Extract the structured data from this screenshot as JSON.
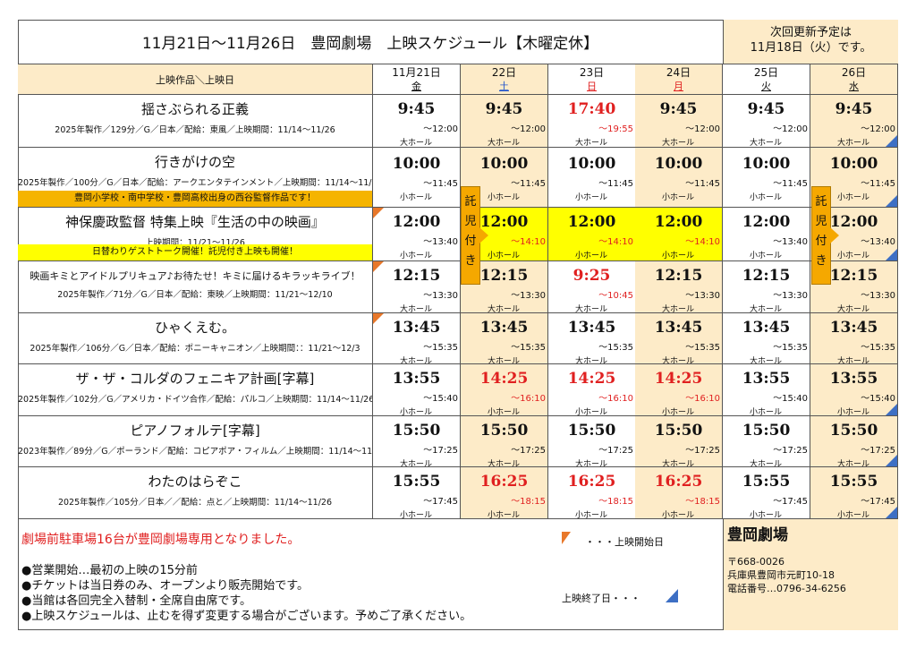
{
  "title": "11月21日～11月26日　豊岡劇場　上映スケジュール【木曜定休】",
  "update_notice": [
    "次回更新予定は",
    "11月18日（火）です。"
  ],
  "header_label": "上映作品＼上映日",
  "days": [
    {
      "date": "11月21日",
      "weekday": "金",
      "color": "#111111",
      "bg": "#ffffff"
    },
    {
      "date": "22日",
      "weekday": "土",
      "color": "#2255cc",
      "bg": "#fdebc8"
    },
    {
      "date": "23日",
      "weekday": "日",
      "color": "#e02020",
      "bg": "#ffffff"
    },
    {
      "date": "24日",
      "weekday": "月",
      "color": "#e02020",
      "bg": "#fdebc8"
    },
    {
      "date": "25日",
      "weekday": "火",
      "color": "#111111",
      "bg": "#ffffff"
    },
    {
      "date": "26日",
      "weekday": "水",
      "color": "#111111",
      "bg": "#fdebc8"
    }
  ],
  "movies": [
    {
      "title": "揺さぶられる正義",
      "info": "2025年製作／129分／G／日本／配給：東風／上映期間：11/14～11/26",
      "start": false,
      "end": true,
      "cells": [
        [
          "9:45",
          "～12:00",
          "大ホール",
          0,
          0
        ],
        [
          "9:45",
          "～12:00",
          "大ホール",
          0,
          0
        ],
        [
          "17:40",
          "～19:55",
          "大ホール",
          1,
          1
        ],
        [
          "9:45",
          "～12:00",
          "大ホール",
          0,
          0
        ],
        [
          "9:45",
          "～12:00",
          "大ホール",
          0,
          0
        ],
        [
          "9:45",
          "～12:00",
          "大ホール",
          0,
          0
        ]
      ]
    },
    {
      "title": "行きがけの空",
      "info": "2025年製作／100分／G／日本／配給：アークエンタテインメント／上映期間：11/14～11/26",
      "note": "豊岡小学校・南中学校・豊岡高校出身の西谷監督作品です！",
      "note_bg": "#f5b400",
      "start": false,
      "end": true,
      "cells": [
        [
          "10:00",
          "～11:45",
          "小ホール",
          0,
          0
        ],
        [
          "10:00",
          "～11:45",
          "小ホール",
          0,
          0
        ],
        [
          "10:00",
          "～11:45",
          "小ホール",
          0,
          0
        ],
        [
          "10:00",
          "～11:45",
          "小ホール",
          0,
          0
        ],
        [
          "10:00",
          "～11:45",
          "小ホール",
          0,
          0
        ],
        [
          "10:00",
          "～11:45",
          "小ホール",
          0,
          0
        ]
      ]
    },
    {
      "title": "神保慶政監督  特集上映『生活の中の映画』",
      "info": "上映期間：11/21～11/26",
      "note": "日替わりゲストトーク開催！託児付き上映も開催！",
      "note_bg": "#ffff00",
      "start": true,
      "end": true,
      "highlight": [
        1,
        2,
        3
      ],
      "cells": [
        [
          "12:00",
          "～13:40",
          "小ホール",
          0,
          0
        ],
        [
          "12:00",
          "～14:10",
          "小ホール",
          0,
          1
        ],
        [
          "12:00",
          "～14:10",
          "小ホール",
          0,
          1
        ],
        [
          "12:00",
          "～14:10",
          "小ホール",
          0,
          1
        ],
        [
          "12:00",
          "～13:40",
          "小ホール",
          0,
          0
        ],
        [
          "12:00",
          "～13:40",
          "小ホール",
          0,
          0
        ]
      ]
    },
    {
      "title": "映画キミとアイドルプリキュア♪お待たせ！キミに届けるキラッキライブ！",
      "info": "2025年製作／71分／G／日本／配給：東映／上映期間：11/21～12/10",
      "start": true,
      "end": false,
      "small_title": true,
      "cells": [
        [
          "12:15",
          "～13:30",
          "大ホール",
          0,
          0
        ],
        [
          "12:15",
          "～13:30",
          "大ホール",
          0,
          0
        ],
        [
          "9:25",
          "～10:45",
          "大ホール",
          1,
          1
        ],
        [
          "12:15",
          "～13:30",
          "大ホール",
          0,
          0
        ],
        [
          "12:15",
          "～13:30",
          "大ホール",
          0,
          0
        ],
        [
          "12:15",
          "～13:30",
          "大ホール",
          0,
          0
        ]
      ]
    },
    {
      "title": "ひゃくえむ。",
      "info": "2025年製作／106分／G／日本／配給：ポニーキャニオン／上映期間：：11/21～12/3",
      "start": true,
      "end": false,
      "cells": [
        [
          "13:45",
          "～15:35",
          "大ホール",
          0,
          0
        ],
        [
          "13:45",
          "～15:35",
          "大ホール",
          0,
          0
        ],
        [
          "13:45",
          "～15:35",
          "大ホール",
          0,
          0
        ],
        [
          "13:45",
          "～15:35",
          "大ホール",
          0,
          0
        ],
        [
          "13:45",
          "～15:35",
          "大ホール",
          0,
          0
        ],
        [
          "13:45",
          "～15:35",
          "大ホール",
          0,
          0
        ]
      ]
    },
    {
      "title": "ザ・ザ・コルダのフェニキア計画[字幕]",
      "info": "2025年製作／102分／G／アメリカ・ドイツ合作／配給：パルコ／上映期間：11/14～11/26",
      "start": false,
      "end": true,
      "cells": [
        [
          "13:55",
          "～15:40",
          "小ホール",
          0,
          0
        ],
        [
          "14:25",
          "～16:10",
          "小ホール",
          1,
          1
        ],
        [
          "14:25",
          "～16:10",
          "小ホール",
          1,
          1
        ],
        [
          "14:25",
          "～16:10",
          "小ホール",
          1,
          1
        ],
        [
          "13:55",
          "～15:40",
          "小ホール",
          0,
          0
        ],
        [
          "13:55",
          "～15:40",
          "小ホール",
          0,
          0
        ]
      ]
    },
    {
      "title": "ピアノフォルテ[字幕]",
      "info": "2023年製作／89分／G／ポーランド／配給：コピアポア・フィルム／上映期間：11/14～11/26",
      "start": false,
      "end": true,
      "cells": [
        [
          "15:50",
          "～17:25",
          "大ホール",
          0,
          0
        ],
        [
          "15:50",
          "～17:25",
          "大ホール",
          0,
          0
        ],
        [
          "15:50",
          "～17:25",
          "大ホール",
          0,
          0
        ],
        [
          "15:50",
          "～17:25",
          "大ホール",
          0,
          0
        ],
        [
          "15:50",
          "～17:25",
          "大ホール",
          0,
          0
        ],
        [
          "15:50",
          "～17:25",
          "大ホール",
          0,
          0
        ]
      ]
    },
    {
      "title": "わたのはらぞこ",
      "info": "2025年製作／105分／日本／／配給：点と／上映期間：11/14～11/26",
      "start": false,
      "end": true,
      "cells": [
        [
          "15:55",
          "～17:45",
          "小ホール",
          0,
          0
        ],
        [
          "16:25",
          "～18:15",
          "小ホール",
          1,
          1
        ],
        [
          "16:25",
          "～18:15",
          "小ホール",
          1,
          1
        ],
        [
          "16:25",
          "～18:15",
          "小ホール",
          1,
          1
        ],
        [
          "15:55",
          "～17:45",
          "小ホール",
          0,
          0
        ],
        [
          "15:55",
          "～17:45",
          "小ホール",
          0,
          0
        ]
      ]
    }
  ],
  "childcare_badge": [
    "託",
    "児",
    "付",
    "き"
  ],
  "footer": {
    "notice": "劇場前駐車場16台が豊岡劇場専用となりました。",
    "bullets": [
      "●営業開始…最初の上映の15分前",
      "●チケットは当日券のみ、オープンより販売開始です。",
      "●当館は各回完全入替制・全席自由席です。",
      "●上映スケジュールは、止むを得ず変更する場合がございます。予めご了承ください。"
    ],
    "legend_start": "・・・上映開始日",
    "legend_end": "上映終了日・・・"
  },
  "theater": {
    "name": "豊岡劇場",
    "postal": "〒668-0026",
    "address": "兵庫県豊岡市元町10-18",
    "phone": "電話番号…0796-34-6256"
  }
}
